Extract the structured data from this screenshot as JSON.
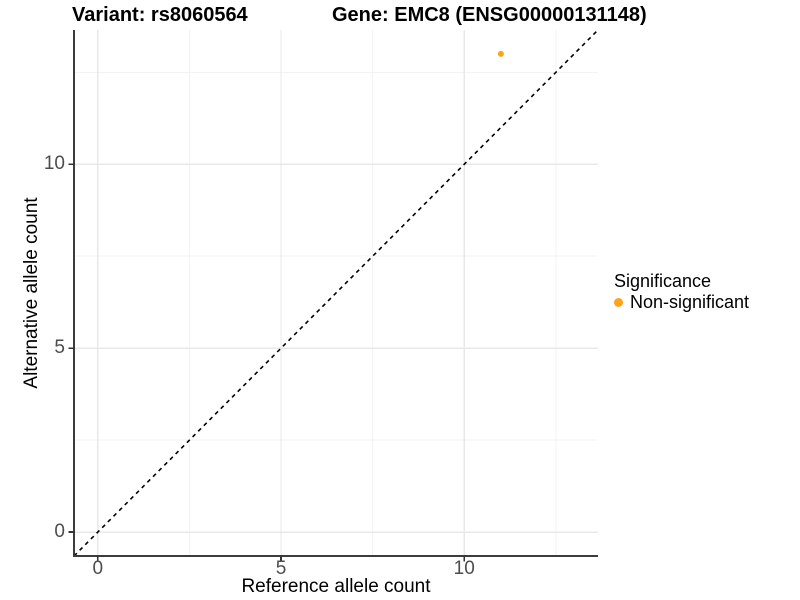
{
  "chart_data": {
    "type": "scatter",
    "titles": [
      "Variant: rs8060564",
      "Gene: EMC8 (ENSG00000131148)"
    ],
    "xlabel": "Reference allele count",
    "ylabel": "Alternative allele count",
    "xlim": [
      -0.65,
      13.65
    ],
    "ylim": [
      -0.65,
      13.65
    ],
    "xticks": [
      0,
      5,
      10
    ],
    "yticks": [
      0,
      5,
      10
    ],
    "minor_gridlines_x": [
      2.5,
      7.5,
      12.5
    ],
    "minor_gridlines_y": [
      2.5,
      7.5,
      12.5
    ],
    "grid": true,
    "points": [
      {
        "x": 11,
        "y": 13,
        "significance": "Non-significant"
      }
    ],
    "identity_line": {
      "slope": 1,
      "intercept": 0,
      "style": "dashed",
      "color": "#000000"
    },
    "legend": {
      "title": "Significance",
      "position": "right",
      "items": [
        {
          "label": "Non-significant",
          "color": "#FFA319"
        }
      ]
    },
    "colors": {
      "point": "#FFA319",
      "axis_line": "#3C3C3C",
      "tick_mark": "#333333",
      "tick_label": "#4D4D4D",
      "grid_major": "#E8E8E8",
      "grid_minor": "#F3F3F3",
      "background": "#FFFFFF"
    }
  }
}
